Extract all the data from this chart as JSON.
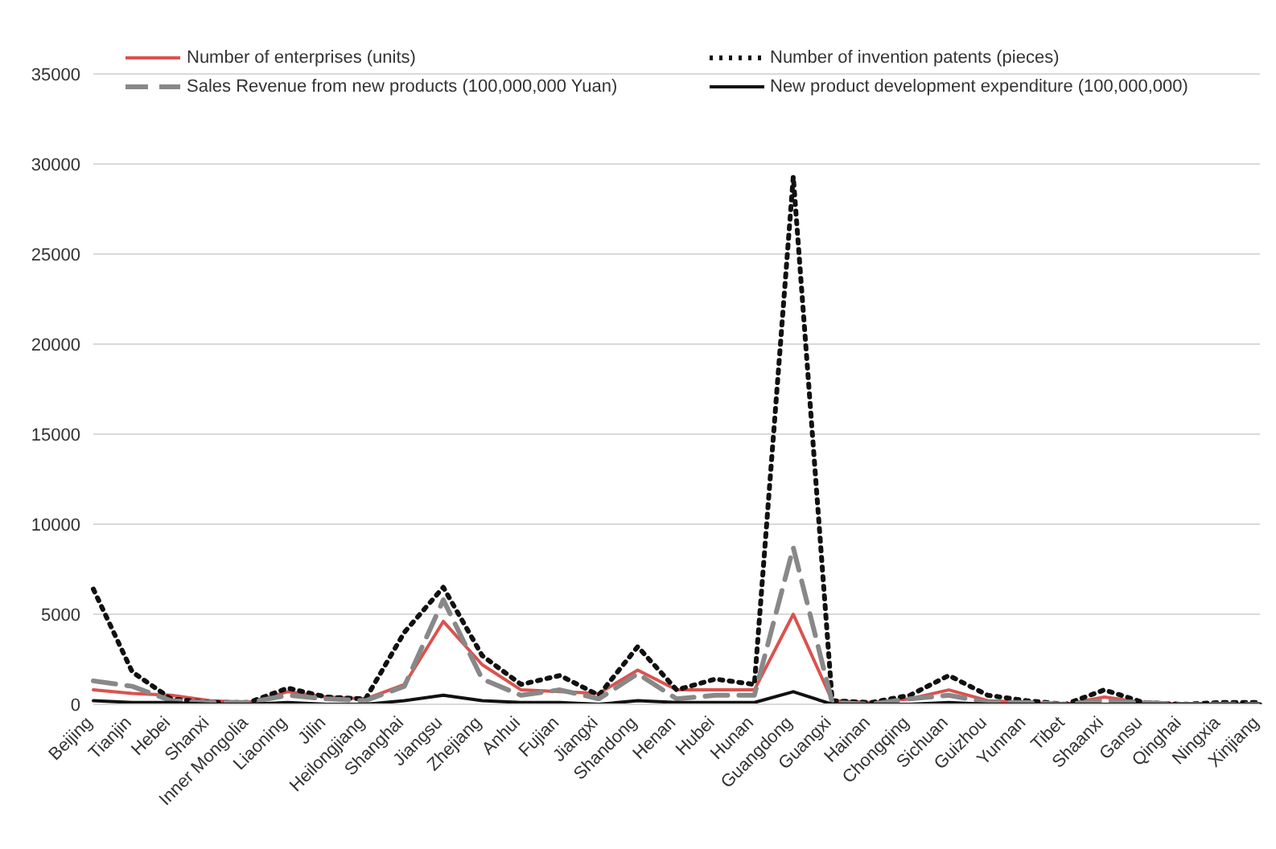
{
  "chart_data": {
    "type": "line",
    "categories": [
      "Beijing",
      "Tianjin",
      "Hebei",
      "Shanxi",
      "Inner Mongolia",
      "Liaoning",
      "Jilin",
      "Heilongjiang",
      "Shanghai",
      "Jiangsu",
      "Zhejiang",
      "Anhui",
      "Fujian",
      "Jiangxi",
      "Shandong",
      "Henan",
      "Hubei",
      "Hunan",
      "Guangdong",
      "Guangxi",
      "Hainan",
      "Chongqing",
      "Sichuan",
      "Guizhou",
      "Yunnan",
      "Tibet",
      "Shaanxi",
      "Gansu",
      "Qinghai",
      "Ningxia",
      "Xinjiang"
    ],
    "series": [
      {
        "name": "Number of enterprises (units)",
        "color": "#d9534f",
        "line_style": "solid",
        "values": [
          800,
          600,
          500,
          200,
          100,
          700,
          400,
          300,
          1100,
          4600,
          2200,
          800,
          700,
          600,
          1900,
          800,
          800,
          800,
          5000,
          200,
          100,
          300,
          800,
          200,
          100,
          0,
          400,
          100,
          0,
          0,
          0
        ]
      },
      {
        "name": "Number of invention patents (pieces)",
        "color": "#111111",
        "line_style": "dotted",
        "values": [
          6400,
          1800,
          300,
          100,
          100,
          900,
          400,
          300,
          4000,
          6500,
          2700,
          1100,
          1600,
          500,
          3200,
          800,
          1400,
          1100,
          29300,
          200,
          100,
          500,
          1600,
          500,
          200,
          0,
          800,
          100,
          0,
          100,
          100
        ]
      },
      {
        "name": "Sales Revenue from new products (100,000,000 Yuan)",
        "color": "#888888",
        "line_style": "dashed",
        "values": [
          1300,
          1000,
          200,
          100,
          100,
          500,
          300,
          200,
          1000,
          5800,
          1400,
          500,
          800,
          300,
          1700,
          300,
          500,
          500,
          8700,
          100,
          0,
          300,
          500,
          100,
          100,
          0,
          200,
          100,
          0,
          0,
          0
        ]
      },
      {
        "name": "New product development expenditure (100,000,000)",
        "color": "#111111",
        "line_style": "solid",
        "values": [
          200,
          100,
          100,
          0,
          0,
          100,
          0,
          0,
          200,
          500,
          200,
          100,
          100,
          0,
          200,
          100,
          100,
          100,
          700,
          0,
          0,
          0,
          100,
          0,
          0,
          0,
          0,
          0,
          0,
          0,
          0
        ]
      }
    ],
    "ylim": [
      0,
      35000
    ],
    "yticks": [
      0,
      5000,
      10000,
      15000,
      20000,
      25000,
      30000,
      35000
    ],
    "grid": "y",
    "legend": "top",
    "marker": "none"
  }
}
